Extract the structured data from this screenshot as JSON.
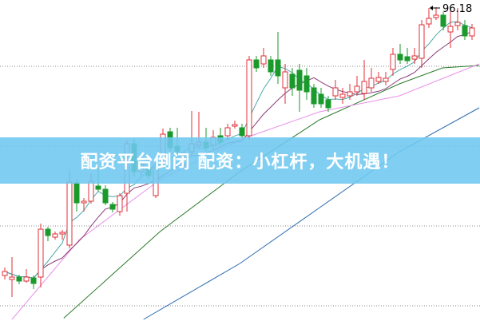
{
  "banner": {
    "text": "配资平台倒闭 配资：小杠杆，大机遇！"
  },
  "chart_data": {
    "type": "candlestick",
    "title": "",
    "xlabel": "",
    "ylabel": "",
    "ylim": [
      80.46,
      96.54
    ],
    "grid": {
      "horizontal": true,
      "style": "dotted",
      "levels": [
        93.22,
        89.22,
        85.22,
        81.22
      ]
    },
    "max_label": {
      "text": "96.18",
      "value": 96.18,
      "index": 60
    },
    "colors": {
      "up": "#e0303a",
      "down": "#1a9a2a",
      "ma5": "#4aa8a8",
      "ma10": "#8a3a7a",
      "ma_pink": "#e890e8",
      "ma_green": "#2a7a2a",
      "ma_blue": "#2a6ab0",
      "banner": "#6ec8f0"
    },
    "candles_ohlc": [
      [
        82.74,
        82.94,
        83.14,
        82.54
      ],
      [
        82.54,
        82.66,
        83.66,
        81.66
      ],
      [
        82.66,
        82.46,
        82.78,
        82.3
      ],
      [
        82.46,
        82.66,
        83.06,
        82.38
      ],
      [
        82.62,
        82.34,
        82.74,
        82.06
      ],
      [
        82.66,
        85.06,
        85.34,
        82.14
      ],
      [
        85.06,
        84.74,
        85.18,
        84.46
      ],
      [
        84.66,
        84.82,
        84.94,
        84.54
      ],
      [
        84.82,
        84.9,
        85.02,
        84.54
      ],
      [
        84.26,
        87.42,
        88.06,
        84.1
      ],
      [
        87.38,
        86.38,
        87.58,
        85.94
      ],
      [
        86.38,
        86.46,
        86.62,
        85.94
      ],
      [
        86.46,
        87.46,
        87.86,
        86.34
      ],
      [
        87.22,
        87.06,
        88.14,
        86.94
      ],
      [
        87.06,
        86.38,
        87.26,
        86.26
      ],
      [
        86.3,
        86.06,
        86.42,
        85.9
      ],
      [
        85.94,
        86.74,
        86.86,
        85.74
      ],
      [
        86.86,
        89.34,
        89.54,
        85.94
      ],
      [
        89.34,
        87.94,
        89.58,
        87.7
      ],
      [
        87.94,
        88.3,
        88.54,
        87.7
      ],
      [
        88.14,
        87.74,
        88.34,
        87.54
      ],
      [
        86.74,
        88.14,
        88.54,
        86.62
      ],
      [
        88.34,
        89.82,
        90.1,
        88.14
      ],
      [
        89.94,
        89.14,
        90.14,
        88.94
      ],
      [
        89.22,
        88.94,
        90.14,
        88.7
      ],
      [
        88.34,
        88.74,
        88.94,
        88.14
      ],
      [
        88.94,
        89.34,
        90.98,
        88.74
      ],
      [
        89.26,
        89.42,
        90.94,
        89.14
      ],
      [
        89.42,
        89.14,
        90.14,
        88.94
      ],
      [
        89.26,
        89.66,
        90.02,
        89.06
      ],
      [
        89.74,
        89.42,
        90.14,
        89.26
      ],
      [
        89.74,
        90.14,
        90.34,
        89.54
      ],
      [
        90.22,
        90.3,
        90.5,
        90.1
      ],
      [
        90.14,
        89.74,
        90.34,
        89.62
      ],
      [
        89.74,
        93.54,
        93.74,
        89.54
      ],
      [
        93.54,
        93.14,
        93.74,
        92.94
      ],
      [
        93.34,
        93.74,
        94.14,
        93.14
      ],
      [
        93.54,
        92.94,
        93.74,
        92.74
      ],
      [
        93.54,
        92.74,
        94.94,
        92.34
      ],
      [
        92.14,
        92.94,
        93.34,
        91.34
      ],
      [
        92.82,
        92.14,
        93.14,
        91.74
      ],
      [
        93.02,
        92.02,
        93.34,
        90.94
      ],
      [
        92.74,
        91.94,
        93.14,
        91.54
      ],
      [
        92.14,
        91.34,
        92.34,
        91.14
      ],
      [
        91.82,
        91.34,
        92.14,
        91.14
      ],
      [
        91.54,
        91.14,
        91.74,
        90.94
      ],
      [
        91.74,
        92.14,
        92.54,
        91.54
      ],
      [
        91.66,
        91.82,
        92.14,
        91.34
      ],
      [
        91.74,
        91.94,
        92.34,
        91.54
      ],
      [
        91.94,
        92.22,
        92.74,
        91.74
      ],
      [
        91.86,
        92.46,
        93.54,
        91.54
      ],
      [
        92.14,
        92.62,
        93.14,
        91.94
      ],
      [
        92.46,
        92.66,
        92.94,
        92.34
      ],
      [
        92.46,
        92.62,
        92.94,
        92.26
      ],
      [
        93.06,
        93.82,
        94.14,
        92.74
      ],
      [
        93.82,
        93.54,
        94.34,
        93.34
      ],
      [
        93.7,
        93.5,
        94.14,
        93.34
      ],
      [
        93.58,
        93.74,
        94.14,
        93.34
      ],
      [
        93.62,
        95.3,
        95.54,
        93.14
      ],
      [
        95.34,
        95.62,
        96.14,
        95.14
      ],
      [
        95.66,
        95.78,
        96.18,
        95.54
      ],
      [
        95.78,
        95.22,
        95.94,
        95.02
      ],
      [
        94.94,
        95.22,
        96.14,
        94.14
      ],
      [
        95.26,
        95.42,
        96.14,
        95.02
      ],
      [
        95.26,
        94.74,
        95.54,
        94.54
      ],
      [
        94.74,
        95.14,
        95.34,
        94.54
      ]
    ],
    "moving_averages": {
      "ma5": {
        "period": 5,
        "color": "#4aa8a8"
      },
      "ma10": {
        "period": 10,
        "color": "#8a3a7a"
      },
      "ma_pink": {
        "color": "#e890e8",
        "points": [
          [
            1,
            80.54
          ],
          [
            10.4,
            84.54
          ],
          [
            21.6,
            87.54
          ],
          [
            32.7,
            89.54
          ],
          [
            43.8,
            90.94
          ],
          [
            54.9,
            91.74
          ],
          [
            66,
            93.34
          ]
        ]
      },
      "ma_green": {
        "color": "#2a7a2a",
        "points": [
          [
            8.2,
            80.6
          ],
          [
            21.6,
            84.94
          ],
          [
            32.7,
            87.94
          ],
          [
            43.8,
            90.54
          ],
          [
            54.9,
            92.34
          ],
          [
            60.9,
            93.14
          ],
          [
            66,
            93.26
          ]
        ]
      },
      "ma_blue": {
        "color": "#2a6ab0",
        "points": [
          [
            19.3,
            80.54
          ],
          [
            32.7,
            83.34
          ],
          [
            43.8,
            86.14
          ],
          [
            54.9,
            88.94
          ],
          [
            66,
            91.14
          ]
        ]
      }
    }
  }
}
